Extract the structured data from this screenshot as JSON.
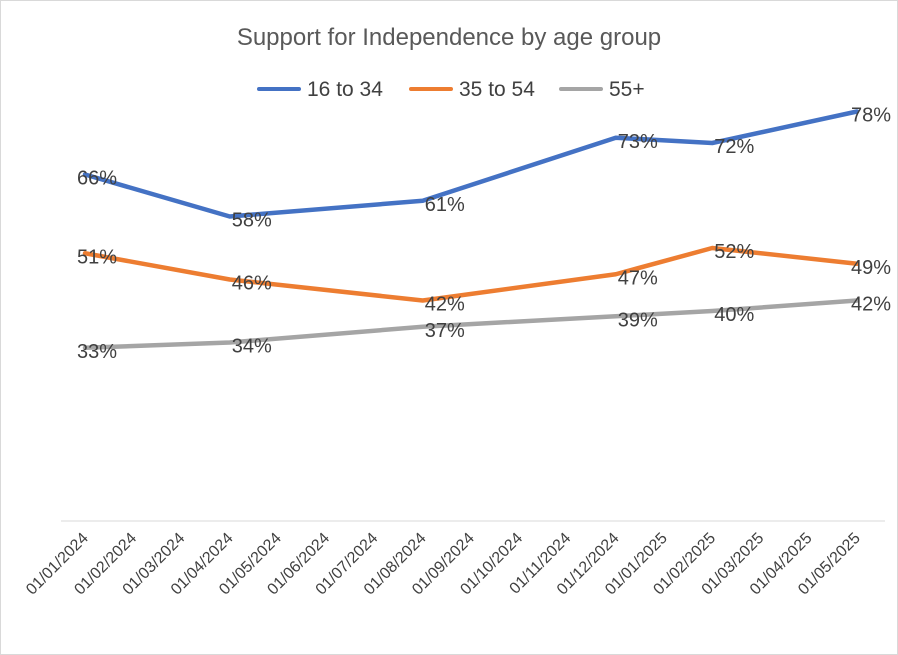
{
  "chart_data": {
    "type": "line",
    "title": "Support for Independence  by age group",
    "xlabel": "",
    "ylabel": "",
    "x": [
      "01/01/2024",
      "01/02/2024",
      "01/03/2024",
      "01/04/2024",
      "01/05/2024",
      "01/06/2024",
      "01/07/2024",
      "01/08/2024",
      "01/09/2024",
      "01/10/2024",
      "01/11/2024",
      "01/12/2024",
      "01/01/2025",
      "01/02/2025",
      "01/03/2025",
      "01/04/2025",
      "01/05/2025"
    ],
    "ylim": [
      0,
      100
    ],
    "grid": false,
    "legend_position": "top",
    "series": [
      {
        "name": "16 to 34",
        "color": "#4472c4",
        "points": [
          {
            "x": "01/01/2024",
            "y": 66
          },
          {
            "x": "01/04/2024",
            "y": 58
          },
          {
            "x": "01/08/2024",
            "y": 61
          },
          {
            "x": "01/12/2024",
            "y": 73
          },
          {
            "x": "01/02/2025",
            "y": 72
          },
          {
            "x": "01/05/2025",
            "y": 78
          }
        ],
        "labels": [
          "66%",
          "58%",
          "61%",
          "73%",
          "72%",
          "78%"
        ]
      },
      {
        "name": "35 to 54",
        "color": "#ed7d31",
        "points": [
          {
            "x": "01/01/2024",
            "y": 51
          },
          {
            "x": "01/04/2024",
            "y": 46
          },
          {
            "x": "01/08/2024",
            "y": 42
          },
          {
            "x": "01/12/2024",
            "y": 47
          },
          {
            "x": "01/02/2025",
            "y": 52
          },
          {
            "x": "01/05/2025",
            "y": 49
          }
        ],
        "labels": [
          "51%",
          "46%",
          "42%",
          "47%",
          "52%",
          "49%"
        ]
      },
      {
        "name": "55+",
        "color": "#a5a5a5",
        "points": [
          {
            "x": "01/01/2024",
            "y": 33
          },
          {
            "x": "01/04/2024",
            "y": 34
          },
          {
            "x": "01/08/2024",
            "y": 37
          },
          {
            "x": "01/12/2024",
            "y": 39
          },
          {
            "x": "01/02/2025",
            "y": 40
          },
          {
            "x": "01/05/2025",
            "y": 42
          }
        ],
        "labels": [
          "33%",
          "34%",
          "37%",
          "39%",
          "40%",
          "42%"
        ]
      }
    ]
  }
}
